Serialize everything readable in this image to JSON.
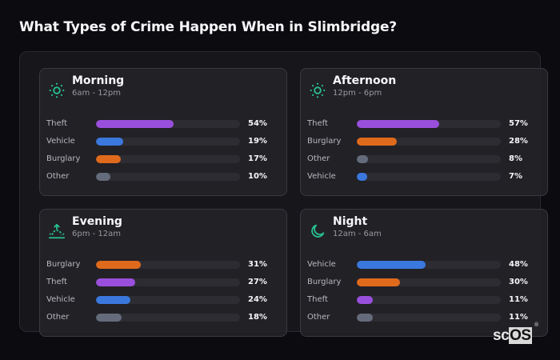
{
  "title": "What Types of Crime Happen When in Slimbridge?",
  "colors": {
    "Theft": "#9a4fdc",
    "Vehicle": "#3a78de",
    "Burglary": "#e06a1c",
    "Other": "#646c7c",
    "icon": "#27c08f"
  },
  "cards": [
    {
      "name": "Morning",
      "range": "6am - 12pm",
      "icon": "sun-icon",
      "rows": [
        {
          "label": "Theft",
          "value": 54,
          "pct": "54%"
        },
        {
          "label": "Vehicle",
          "value": 19,
          "pct": "19%"
        },
        {
          "label": "Burglary",
          "value": 17,
          "pct": "17%"
        },
        {
          "label": "Other",
          "value": 10,
          "pct": "10%"
        }
      ]
    },
    {
      "name": "Afternoon",
      "range": "12pm - 6pm",
      "icon": "sun-icon",
      "rows": [
        {
          "label": "Theft",
          "value": 57,
          "pct": "57%"
        },
        {
          "label": "Burglary",
          "value": 28,
          "pct": "28%"
        },
        {
          "label": "Other",
          "value": 8,
          "pct": "8%"
        },
        {
          "label": "Vehicle",
          "value": 7,
          "pct": "7%"
        }
      ]
    },
    {
      "name": "Evening",
      "range": "6pm - 12am",
      "icon": "sunset-icon",
      "rows": [
        {
          "label": "Burglary",
          "value": 31,
          "pct": "31%"
        },
        {
          "label": "Theft",
          "value": 27,
          "pct": "27%"
        },
        {
          "label": "Vehicle",
          "value": 24,
          "pct": "24%"
        },
        {
          "label": "Other",
          "value": 18,
          "pct": "18%"
        }
      ]
    },
    {
      "name": "Night",
      "range": "12am - 6am",
      "icon": "moon-icon",
      "rows": [
        {
          "label": "Vehicle",
          "value": 48,
          "pct": "48%"
        },
        {
          "label": "Burglary",
          "value": 30,
          "pct": "30%"
        },
        {
          "label": "Theft",
          "value": 11,
          "pct": "11%"
        },
        {
          "label": "Other",
          "value": 11,
          "pct": "11%"
        }
      ]
    }
  ],
  "brand": {
    "sc": "sc",
    "os": "OS",
    "reg": "®"
  },
  "chart_data": {
    "type": "bar",
    "title": "What Types of Crime Happen When in Slimbridge?",
    "orientation": "horizontal",
    "layout": "small multiples (2x2)",
    "xlabel": "",
    "ylabel": "",
    "xlim": [
      0,
      100
    ],
    "grid": false,
    "panels": [
      {
        "title": "Morning",
        "subtitle": "6am - 12pm",
        "categories": [
          "Theft",
          "Vehicle",
          "Burglary",
          "Other"
        ],
        "values": [
          54,
          19,
          17,
          10
        ]
      },
      {
        "title": "Afternoon",
        "subtitle": "12pm - 6pm",
        "categories": [
          "Theft",
          "Burglary",
          "Other",
          "Vehicle"
        ],
        "values": [
          57,
          28,
          8,
          7
        ]
      },
      {
        "title": "Evening",
        "subtitle": "6pm - 12am",
        "categories": [
          "Burglary",
          "Theft",
          "Vehicle",
          "Other"
        ],
        "values": [
          31,
          27,
          24,
          18
        ]
      },
      {
        "title": "Night",
        "subtitle": "12am - 6am",
        "categories": [
          "Vehicle",
          "Burglary",
          "Theft",
          "Other"
        ],
        "values": [
          48,
          30,
          11,
          11
        ]
      }
    ],
    "category_colors": {
      "Theft": "#9a4fdc",
      "Vehicle": "#3a78de",
      "Burglary": "#e06a1c",
      "Other": "#646c7c"
    },
    "value_unit": "%"
  }
}
